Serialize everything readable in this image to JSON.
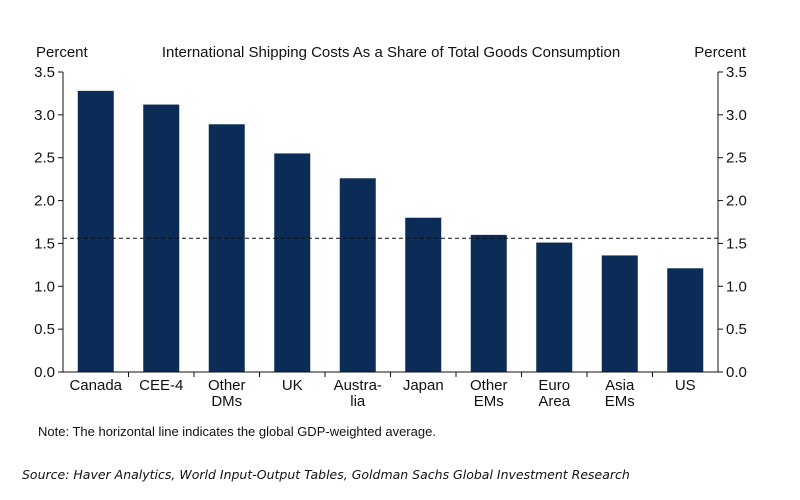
{
  "chart_data": {
    "type": "bar",
    "title": "International Shipping Costs As a Share of Total Goods Consumption",
    "y_unit_left": "Percent",
    "y_unit_right": "Percent",
    "categories": [
      [
        "Canada"
      ],
      [
        "CEE-4"
      ],
      [
        "Other",
        "DMs"
      ],
      [
        "UK"
      ],
      [
        "Austra-",
        "lia"
      ],
      [
        "Japan"
      ],
      [
        "Other",
        "EMs"
      ],
      [
        "Euro",
        "Area"
      ],
      [
        "Asia",
        "EMs"
      ],
      [
        "US"
      ]
    ],
    "values": [
      3.28,
      3.12,
      2.89,
      2.55,
      2.26,
      1.8,
      1.6,
      1.51,
      1.36,
      1.21
    ],
    "ylim": [
      0,
      3.5
    ],
    "yticks": [
      "0.0",
      "0.5",
      "1.0",
      "1.5",
      "2.0",
      "2.5",
      "3.0",
      "3.5"
    ],
    "reference_line": {
      "value": 1.56,
      "style": "dashed"
    },
    "bar_color": "#0b2c56",
    "grid": false
  },
  "note": "Note: The horizontal line indicates the global GDP-weighted average.",
  "source": "Source: Haver Analytics, World Input-Output Tables, Goldman Sachs Global Investment Research"
}
